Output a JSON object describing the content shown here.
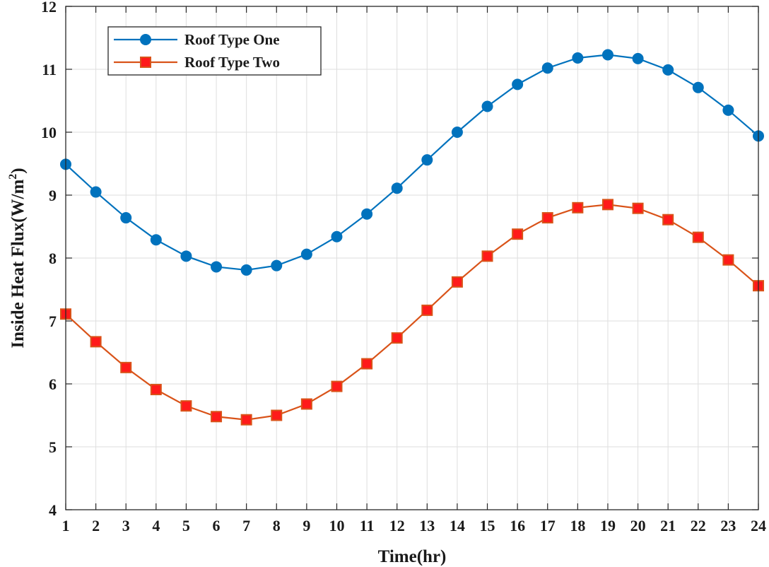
{
  "chart_data": {
    "type": "line",
    "title": "",
    "xlabel": "Time(hr)",
    "ylabel_main": "Inside Heat Flux(W/m",
    "ylabel_sup": "2",
    "ylabel_close": ")",
    "xlim": [
      1,
      24
    ],
    "ylim": [
      4,
      12
    ],
    "x": [
      1,
      2,
      3,
      4,
      5,
      6,
      7,
      8,
      9,
      10,
      11,
      12,
      13,
      14,
      15,
      16,
      17,
      18,
      19,
      20,
      21,
      22,
      23,
      24
    ],
    "x_ticks": [
      "1",
      "2",
      "3",
      "4",
      "5",
      "6",
      "7",
      "8",
      "9",
      "10",
      "11",
      "12",
      "13",
      "14",
      "15",
      "16",
      "17",
      "18",
      "19",
      "20",
      "21",
      "22",
      "23",
      "24"
    ],
    "y_ticks": [
      "4",
      "5",
      "6",
      "7",
      "8",
      "9",
      "10",
      "11",
      "12"
    ],
    "grid": true,
    "legend_position": "top-left",
    "series": [
      {
        "name": "Roof Type One",
        "marker": "circle",
        "color": "#0072bd",
        "values": [
          9.49,
          9.05,
          8.64,
          8.29,
          8.03,
          7.86,
          7.81,
          7.88,
          8.06,
          8.34,
          8.7,
          9.11,
          9.56,
          10.0,
          10.41,
          10.76,
          11.02,
          11.18,
          11.23,
          11.17,
          10.99,
          10.71,
          10.35,
          9.94
        ]
      },
      {
        "name": "Roof Type Two",
        "marker": "square",
        "color": "#d95319",
        "fill_color": "#ff1a1a",
        "values": [
          7.11,
          6.67,
          6.26,
          5.91,
          5.65,
          5.48,
          5.43,
          5.5,
          5.68,
          5.96,
          6.32,
          6.73,
          7.17,
          7.62,
          8.03,
          8.38,
          8.64,
          8.8,
          8.85,
          8.79,
          8.61,
          8.33,
          7.97,
          7.56
        ]
      }
    ]
  }
}
